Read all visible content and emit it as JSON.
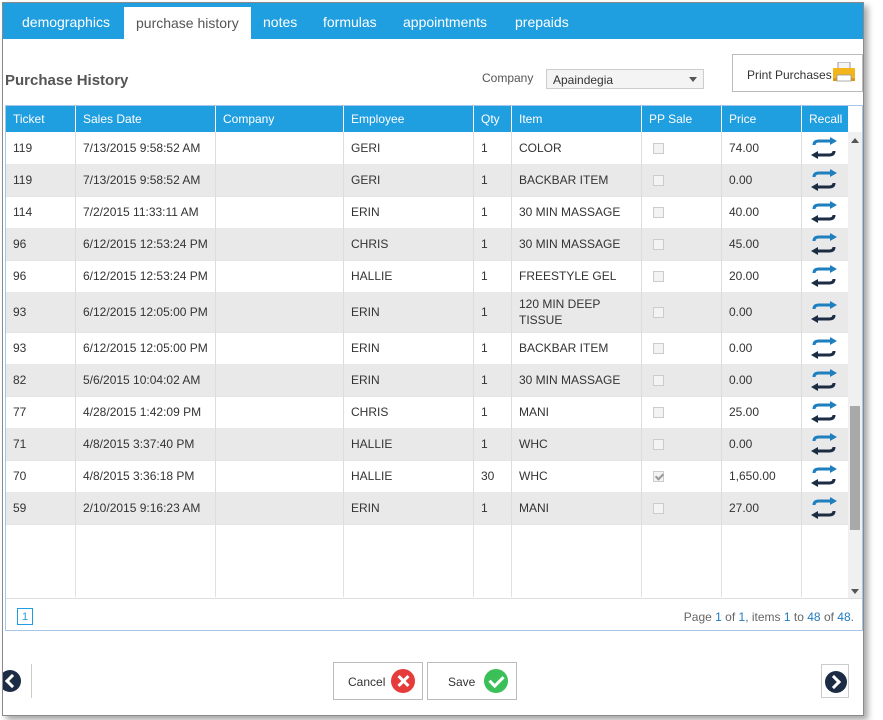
{
  "tabs": [
    {
      "label": "demographics",
      "active": false
    },
    {
      "label": "purchase history",
      "active": true
    },
    {
      "label": "notes",
      "active": false
    },
    {
      "label": "formulas",
      "active": false
    },
    {
      "label": "appointments",
      "active": false
    },
    {
      "label": "prepaids",
      "active": false
    }
  ],
  "page_title": "Purchase History",
  "company_filter": {
    "label": "Company",
    "selected": "Apaindegia"
  },
  "print_button": {
    "label": "Print Purchases",
    "icon": "printer-icon"
  },
  "columns": [
    "Ticket",
    "Sales Date",
    "Company",
    "Employee",
    "Qty",
    "Item",
    "PP Sale",
    "Price",
    "Recall"
  ],
  "rows": [
    {
      "ticket": "119",
      "date": "7/13/2015 9:58:52 AM",
      "company": "",
      "employee": "GERI",
      "qty": "1",
      "item": "COLOR",
      "pp_sale": false,
      "price": "74.00"
    },
    {
      "ticket": "119",
      "date": "7/13/2015 9:58:52 AM",
      "company": "",
      "employee": "GERI",
      "qty": "1",
      "item": "BACKBAR ITEM",
      "pp_sale": false,
      "price": "0.00"
    },
    {
      "ticket": "114",
      "date": "7/2/2015 11:33:11 AM",
      "company": "",
      "employee": "ERIN",
      "qty": "1",
      "item": "30 MIN MASSAGE",
      "pp_sale": false,
      "price": "40.00"
    },
    {
      "ticket": "96",
      "date": "6/12/2015 12:53:24 PM",
      "company": "",
      "employee": "CHRIS",
      "qty": "1",
      "item": "30 MIN MASSAGE",
      "pp_sale": false,
      "price": "45.00"
    },
    {
      "ticket": "96",
      "date": "6/12/2015 12:53:24 PM",
      "company": "",
      "employee": "HALLIE",
      "qty": "1",
      "item": "FREESTYLE GEL",
      "pp_sale": false,
      "price": "20.00"
    },
    {
      "ticket": "93",
      "date": "6/12/2015 12:05:00 PM",
      "company": "",
      "employee": "ERIN",
      "qty": "1",
      "item": "120 MIN DEEP TISSUE",
      "pp_sale": false,
      "price": "0.00"
    },
    {
      "ticket": "93",
      "date": "6/12/2015 12:05:00 PM",
      "company": "",
      "employee": "ERIN",
      "qty": "1",
      "item": "BACKBAR ITEM",
      "pp_sale": false,
      "price": "0.00"
    },
    {
      "ticket": "82",
      "date": "5/6/2015 10:04:02 AM",
      "company": "",
      "employee": "ERIN",
      "qty": "1",
      "item": "30 MIN MASSAGE",
      "pp_sale": false,
      "price": "0.00"
    },
    {
      "ticket": "77",
      "date": "4/28/2015 1:42:09 PM",
      "company": "",
      "employee": "CHRIS",
      "qty": "1",
      "item": "MANI",
      "pp_sale": false,
      "price": "25.00"
    },
    {
      "ticket": "71",
      "date": "4/8/2015 3:37:40 PM",
      "company": "",
      "employee": "HALLIE",
      "qty": "1",
      "item": "WHC",
      "pp_sale": false,
      "price": "0.00"
    },
    {
      "ticket": "70",
      "date": "4/8/2015 3:36:18 PM",
      "company": "",
      "employee": "HALLIE",
      "qty": "30",
      "item": "WHC",
      "pp_sale": true,
      "price": "1,650.00"
    },
    {
      "ticket": "59",
      "date": "2/10/2015 9:16:23 AM",
      "company": "",
      "employee": "ERIN",
      "qty": "1",
      "item": "MANI",
      "pp_sale": false,
      "price": "27.00"
    }
  ],
  "pager": {
    "current_page": "1",
    "prefix": "Page ",
    "page": "1",
    "of_label": " of ",
    "pages": "1",
    "items_label": ", items ",
    "from": "1",
    "to_label": " to ",
    "to": "48",
    "of2_label": " of ",
    "total": "48",
    "suffix": "."
  },
  "footer": {
    "cancel_label": "Cancel",
    "save_label": "Save"
  },
  "colors": {
    "accent": "#1f9ee0",
    "cancel": "#e63b3b",
    "save": "#3bbf58",
    "nav": "#1b2c44"
  }
}
